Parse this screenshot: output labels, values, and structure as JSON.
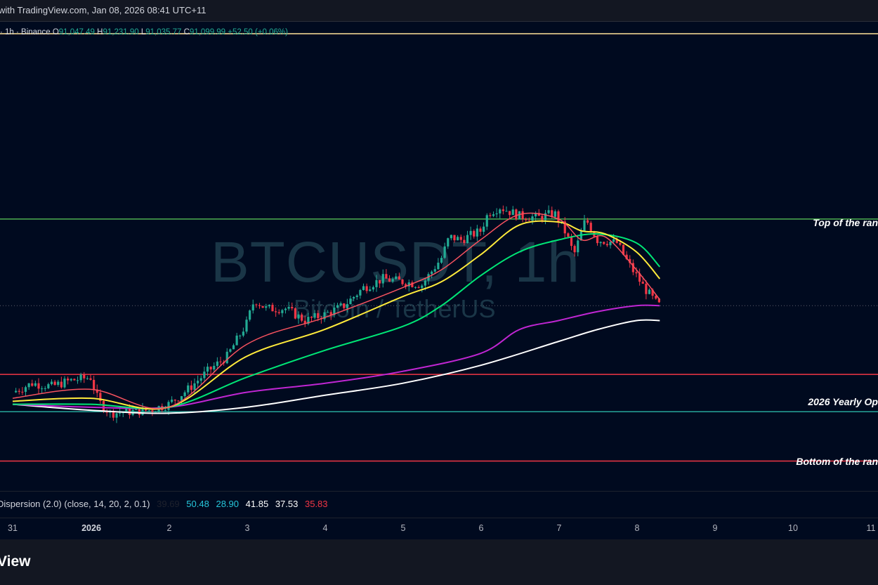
{
  "header": {
    "text": "with TradingView.com, Jan 08, 2026 08:41 UTC+11"
  },
  "legend": {
    "prefix": "· 1h · Binance",
    "o_label": "O",
    "o_value": "91,047.49",
    "h_label": "H",
    "h_value": "91,231.90",
    "l_label": "L",
    "l_value": "91,035.77",
    "c_label": "C",
    "c_value": "91,099.99",
    "change": "+52.50 (+0.06%)"
  },
  "watermark": {
    "symbol": "BTCUSDT, 1h",
    "description": "Bitcoin / TetherUS"
  },
  "levels": {
    "top": {
      "label": "Top of the ran",
      "color": "#4caf50"
    },
    "yearly_open": {
      "label": "2026 Yearly Op",
      "color": "#26a69a"
    },
    "bottom": {
      "label": "Bottom of the ran",
      "color": "#f23645"
    },
    "mid": {
      "label": "",
      "color": "#f23645"
    },
    "upper": {
      "label": "",
      "color": "#ffe29a"
    }
  },
  "indicator": {
    "name": "Dispersion (2.0) (close, 14, 20, 2, 0.1)",
    "v1": "39.69",
    "v1_color": "#1e222d",
    "v2": "50.48",
    "v2_color": "#26c6da",
    "v3": "28.90",
    "v3_color": "#26c6da",
    "v4": "41.85",
    "v4_color": "#ffffff",
    "v5": "37.53",
    "v5_color": "#ffffff",
    "v6": "35.83",
    "v6_color": "#f23645"
  },
  "time_axis": {
    "ticks": [
      "31",
      "2026",
      "2",
      "3",
      "4",
      "5",
      "6",
      "7",
      "8",
      "9",
      "10",
      "11"
    ]
  },
  "footer": {
    "brand": "View"
  },
  "chart_data": {
    "type": "line",
    "x_unit": "days (Dec 31 = 0, Jan 1 = 1 ... Jan 11 = 11)",
    "colors": {
      "up": "#22ab94",
      "down": "#f23645",
      "ema_fast": "#f7525f",
      "ema_mid": "#ffeb3b",
      "ema_slow": "#00e676",
      "ma_purple": "#c026d3",
      "ma_white": "#ffffff"
    },
    "price": {
      "x": [
        0,
        0.25,
        0.5,
        0.75,
        1.0,
        1.1,
        1.25,
        1.5,
        1.75,
        2.0,
        2.25,
        2.5,
        2.75,
        3.0,
        3.1,
        3.25,
        3.5,
        3.75,
        4.0,
        4.25,
        4.5,
        4.75,
        5.0,
        5.25,
        5.5,
        5.6,
        5.75,
        6.0,
        6.1,
        6.25,
        6.5,
        6.75,
        6.95,
        7.1,
        7.2,
        7.35,
        7.5,
        7.75,
        7.9,
        8.1,
        8.25,
        8.3
      ],
      "y": [
        88200,
        88500,
        88400,
        88600,
        88700,
        87900,
        87500,
        87550,
        87600,
        87800,
        88300,
        88900,
        89400,
        90500,
        91300,
        91000,
        91000,
        90600,
        90800,
        91100,
        91700,
        92000,
        91900,
        91800,
        92700,
        93400,
        93300,
        93600,
        94200,
        94400,
        94100,
        94050,
        94200,
        93500,
        92800,
        94000,
        93300,
        93200,
        92500,
        91700,
        91200,
        91100
      ]
    },
    "ema_fast": {
      "x": [
        0,
        1,
        2,
        3,
        4,
        5,
        5.5,
        6,
        6.5,
        7,
        7.3,
        7.6,
        8,
        8.3
      ],
      "y": [
        88000,
        88300,
        87700,
        89800,
        90700,
        91700,
        92300,
        93300,
        94150,
        94000,
        93300,
        93400,
        92300,
        91300
      ]
    },
    "ema_mid": {
      "x": [
        0,
        1,
        2,
        3,
        4,
        5,
        5.5,
        6,
        6.5,
        7,
        7.3,
        7.6,
        8,
        8.3
      ],
      "y": [
        87900,
        88000,
        87700,
        89400,
        90300,
        91400,
        91900,
        92800,
        93800,
        93900,
        93600,
        93500,
        92900,
        92000
      ]
    },
    "ema_slow": {
      "x": [
        0,
        1,
        2,
        3,
        4,
        5,
        5.5,
        6,
        6.5,
        7,
        7.5,
        8,
        8.3
      ],
      "y": [
        87800,
        87800,
        87700,
        88700,
        89600,
        90400,
        91100,
        92100,
        92900,
        93300,
        93500,
        93200,
        92400
      ]
    },
    "ma_purple": {
      "x": [
        0,
        1,
        2,
        3,
        4,
        5,
        6,
        6.5,
        7,
        7.5,
        8,
        8.3
      ],
      "y": [
        87800,
        87700,
        87700,
        88200,
        88500,
        88900,
        89500,
        90300,
        90600,
        90900,
        91100,
        91100
      ]
    },
    "ma_white": {
      "x": [
        0,
        1,
        2,
        3,
        4,
        5,
        6,
        7,
        7.5,
        8,
        8.3
      ],
      "y": [
        87800,
        87600,
        87500,
        87700,
        88100,
        88500,
        89100,
        89900,
        90300,
        90600,
        90600
      ]
    },
    "levels": {
      "top": 94000,
      "mid": 88800,
      "yearly_open": 87550,
      "bottom": 85900,
      "upper": 100200
    },
    "xlim": [
      -0.1,
      11.3
    ],
    "ylim": [
      84900,
      100600
    ]
  }
}
